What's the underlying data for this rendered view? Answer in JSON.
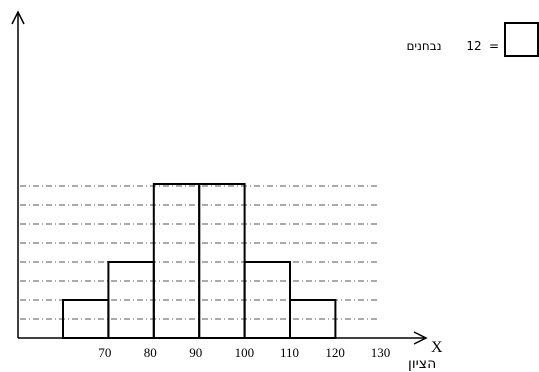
{
  "chart_data": {
    "type": "histogram",
    "bins": [
      {
        "from": 60,
        "to": 70,
        "height": 2
      },
      {
        "from": 70,
        "to": 80,
        "height": 4
      },
      {
        "from": 80,
        "to": 90,
        "height": 8
      },
      {
        "from": 90,
        "to": 100,
        "height": 8
      },
      {
        "from": 100,
        "to": 110,
        "height": 4
      },
      {
        "from": 110,
        "to": 120,
        "height": 2
      }
    ],
    "x_tick_labels": [
      "70",
      "80",
      "90",
      "100",
      "110",
      "120",
      "130"
    ],
    "x_axis_letter": "X",
    "xlabel": "הציון",
    "legend": {
      "value_text": "12",
      "label": "נבחנים"
    },
    "gridlines": "dash-dot horizontal"
  }
}
